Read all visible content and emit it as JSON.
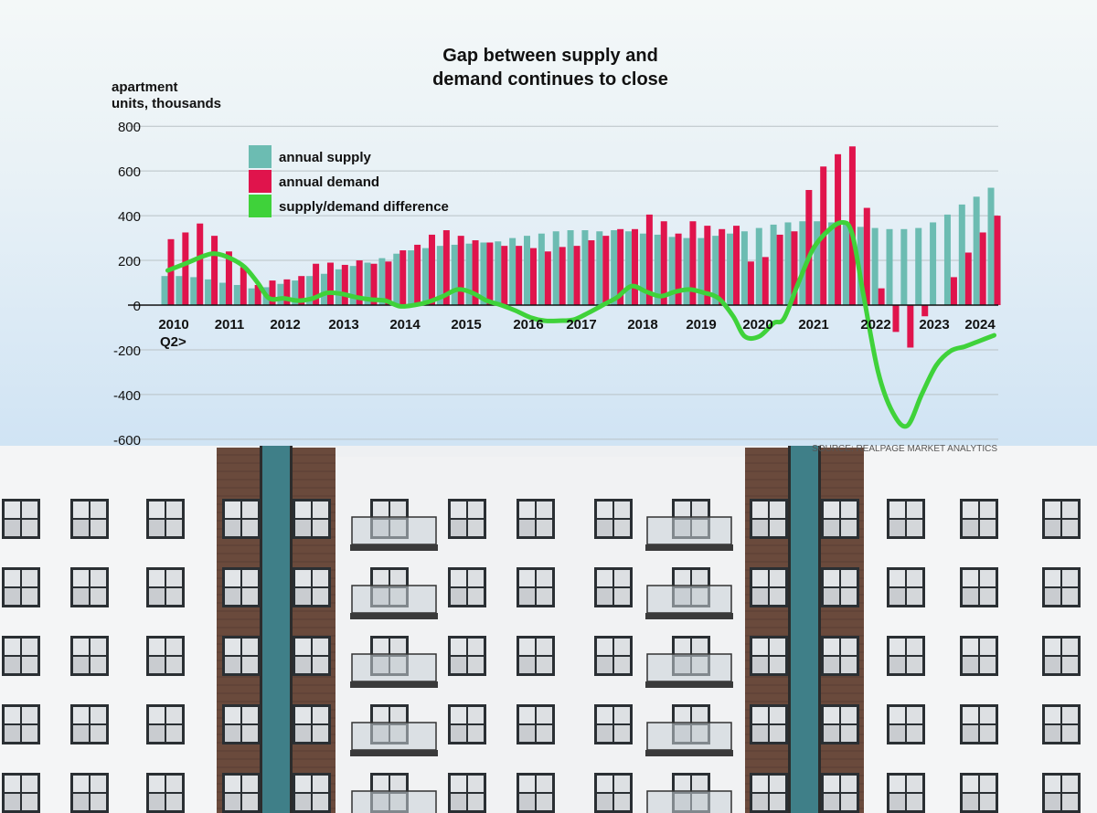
{
  "chart_data": {
    "type": "bar",
    "title_lines": [
      "Gap between supply and",
      "demand continues to close"
    ],
    "ylabel_lines": [
      "apartment",
      "units, thousands"
    ],
    "ylim": [
      -600,
      800
    ],
    "yticks": [
      800,
      600,
      400,
      200,
      0,
      -200,
      -400,
      -600
    ],
    "ytick_labels": [
      "800",
      "600",
      "400",
      "200",
      "0",
      "-200",
      "-400",
      "-600"
    ],
    "x_labels": [
      "2010",
      "2011",
      "2012",
      "2013",
      "2014",
      "2015",
      "2016",
      "2017",
      "2018",
      "2019",
      "2020",
      "2021",
      "2022",
      "2023",
      "2024"
    ],
    "x_sub_label": "Q2>",
    "legend": {
      "placement": "top-left",
      "items": [
        "annual supply",
        "annual demand",
        "supply/demand difference"
      ]
    },
    "colors": {
      "supply": "#6cbcb2",
      "demand": "#e0144c",
      "difference": "#3fd23a"
    },
    "series": [
      {
        "name": "annual supply",
        "values": [
          130,
          130,
          125,
          115,
          100,
          90,
          75,
          80,
          95,
          110,
          130,
          140,
          160,
          175,
          190,
          210,
          230,
          245,
          255,
          265,
          270,
          275,
          280,
          285,
          300,
          310,
          320,
          330,
          335,
          335,
          330,
          335,
          330,
          320,
          315,
          305,
          300,
          300,
          310,
          320,
          330,
          345,
          360,
          370,
          375,
          375,
          370,
          360,
          350,
          345,
          340,
          340,
          345,
          370,
          405,
          450,
          485,
          525
        ]
      },
      {
        "name": "annual demand",
        "values": [
          295,
          325,
          365,
          310,
          240,
          170,
          90,
          110,
          115,
          130,
          185,
          190,
          180,
          200,
          185,
          195,
          245,
          270,
          315,
          335,
          310,
          290,
          280,
          265,
          265,
          255,
          240,
          260,
          265,
          290,
          310,
          340,
          340,
          405,
          375,
          320,
          375,
          355,
          340,
          355,
          195,
          215,
          315,
          330,
          515,
          620,
          675,
          710,
          435,
          75,
          -120,
          -190,
          -50,
          0,
          125,
          235,
          325,
          400
        ]
      },
      {
        "name": "supply/demand difference",
        "points": [
          [
            0,
            155
          ],
          [
            1.2,
            185
          ],
          [
            2.5,
            220
          ],
          [
            3.3,
            230
          ],
          [
            4.3,
            210
          ],
          [
            5.3,
            170
          ],
          [
            6.2,
            100
          ],
          [
            7.0,
            30
          ],
          [
            8.0,
            30
          ],
          [
            9.0,
            20
          ],
          [
            10.0,
            30
          ],
          [
            11.0,
            55
          ],
          [
            12.0,
            50
          ],
          [
            13.0,
            35
          ],
          [
            14.0,
            25
          ],
          [
            15.0,
            20
          ],
          [
            16.0,
            -5
          ],
          [
            17.0,
            0
          ],
          [
            18.0,
            15
          ],
          [
            19.0,
            40
          ],
          [
            20.0,
            70
          ],
          [
            21.0,
            55
          ],
          [
            22.0,
            20
          ],
          [
            23.0,
            0
          ],
          [
            24.0,
            -25
          ],
          [
            25.0,
            -55
          ],
          [
            26.0,
            -70
          ],
          [
            27.0,
            -70
          ],
          [
            28.0,
            -65
          ],
          [
            29.0,
            -35
          ],
          [
            30.0,
            0
          ],
          [
            31.0,
            35
          ],
          [
            32.0,
            85
          ],
          [
            33.0,
            60
          ],
          [
            34.0,
            40
          ],
          [
            35.0,
            60
          ],
          [
            36.0,
            70
          ],
          [
            37.0,
            55
          ],
          [
            38.0,
            30
          ],
          [
            39.0,
            -50
          ],
          [
            39.8,
            -140
          ],
          [
            40.8,
            -140
          ],
          [
            41.8,
            -80
          ],
          [
            42.5,
            -60
          ],
          [
            43.5,
            100
          ],
          [
            44.5,
            250
          ],
          [
            45.5,
            330
          ],
          [
            46.5,
            370
          ],
          [
            47.2,
            320
          ],
          [
            48.0,
            40
          ],
          [
            49.0,
            -300
          ],
          [
            50.0,
            -480
          ],
          [
            51.0,
            -540
          ],
          [
            52.0,
            -400
          ],
          [
            53.0,
            -270
          ],
          [
            54.0,
            -205
          ],
          [
            55.0,
            -185
          ],
          [
            56.0,
            -160
          ],
          [
            57.0,
            -135
          ]
        ]
      }
    ],
    "grid": "horizontal",
    "annotation": "SOURCE: REALPAGE MARKET ANALYTICS"
  }
}
